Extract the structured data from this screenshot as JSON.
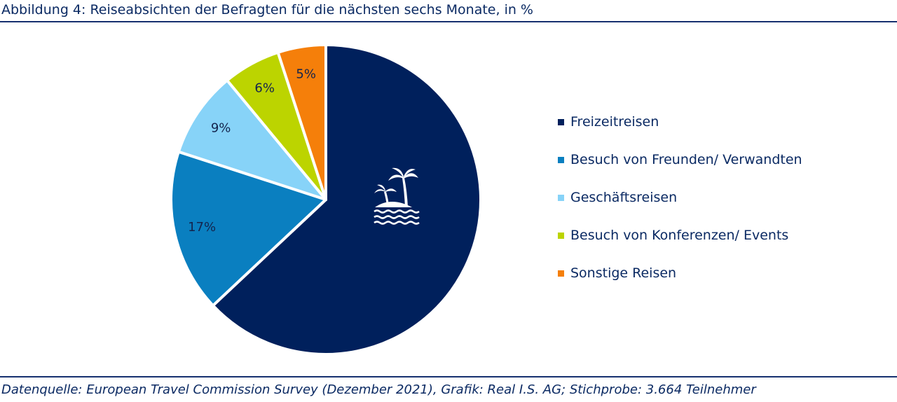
{
  "title": "Abbildung 4: Reiseabsichten der Befragten für die nächsten sechs Monate, in %",
  "source": "Datenquelle: European Travel Commission Survey (Dezember 2021), Grafik: Real I.S. AG; Stichprobe: 3.664 Teilnehmer",
  "chart_data": {
    "type": "pie",
    "title": "Abbildung 4: Reiseabsichten der Befragten für die nächsten sechs Monate, in %",
    "categories": [
      "Freizeitreisen",
      "Besuch von Freunden/ Verwandten",
      "Geschäftsreisen",
      "Besuch von Konferenzen/ Events",
      "Sonstige Reisen"
    ],
    "values": [
      63,
      17,
      9,
      6,
      5
    ],
    "data_labels": [
      "",
      "17%",
      "9%",
      "6%",
      "5%"
    ],
    "colors": [
      "#00205c",
      "#0a7fc0",
      "#87d3f8",
      "#bcd400",
      "#f57f0a"
    ],
    "legend_position": "right",
    "icon": "palm-island-icon"
  }
}
